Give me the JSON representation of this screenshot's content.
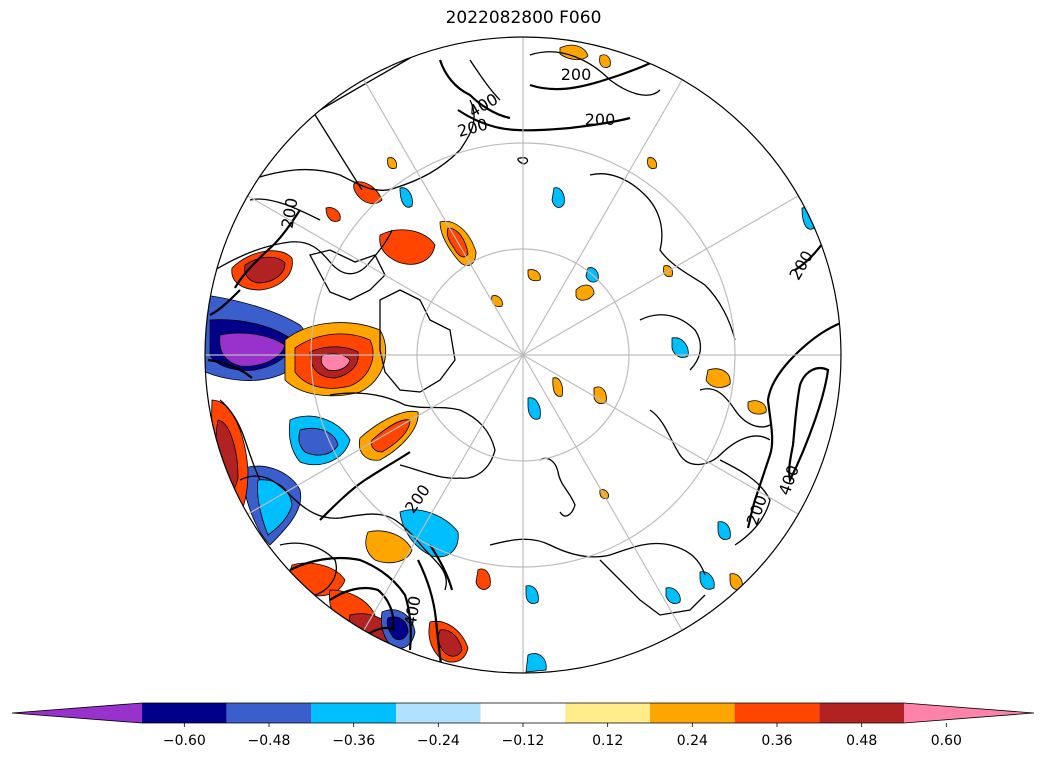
{
  "title": "2022082800 F060",
  "colorbar": {
    "colors": [
      "#9932cc",
      "#00008b",
      "#3a5fcd",
      "#00bfff",
      "#b0e2ff",
      "#ffffff",
      "#ffec8b",
      "#ffa500",
      "#ff4500",
      "#b22222",
      "#ff82ab"
    ],
    "ticks": [
      "−0.60",
      "−0.48",
      "−0.36",
      "−0.24",
      "−0.12",
      "0.12",
      "0.24",
      "0.36",
      "0.48",
      "0.60"
    ]
  },
  "contour_labels": [
    "200",
    "400",
    "200",
    "200",
    "200",
    "200",
    "400",
    "200",
    "200",
    "400"
  ]
}
